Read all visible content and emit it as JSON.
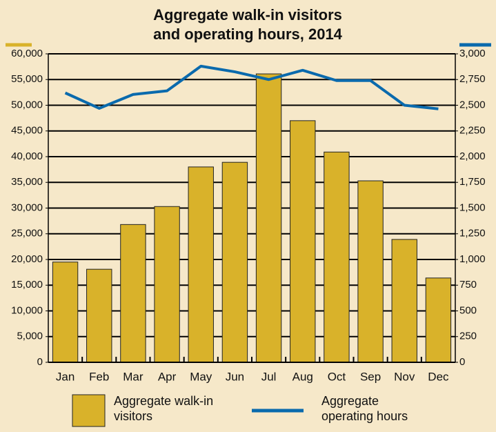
{
  "chart_data": {
    "type": "bar_line",
    "title": "Aggregate walk-in visitors and operating hours, 2014",
    "categories": [
      "Jan",
      "Feb",
      "Mar",
      "Apr",
      "May",
      "Jun",
      "Jul",
      "Aug",
      "Oct",
      "Sep",
      "Nov",
      "Dec"
    ],
    "series": [
      {
        "name": "Aggregate walk-in visitors",
        "type": "bar",
        "color": "#d9b22a",
        "axis": "y",
        "values": [
          19500,
          18100,
          26800,
          30300,
          38000,
          38900,
          56100,
          47000,
          40900,
          35300,
          23900,
          16400
        ]
      },
      {
        "name": "Aggregate operating hours",
        "type": "line",
        "color": "#0a6aad",
        "axis": "y2",
        "values": [
          2620,
          2470,
          2605,
          2640,
          2880,
          2825,
          2750,
          2840,
          2740,
          2740,
          2500,
          2465
        ]
      }
    ],
    "ylim": [
      0,
      60000
    ],
    "yticks": [
      0,
      {
        "value": 5000,
        "label": "5,000"
      },
      {
        "value": 10000,
        "label": "10,000"
      },
      {
        "value": 15000,
        "label": "15,000"
      },
      {
        "value": 20000,
        "label": "20,000"
      },
      {
        "value": 25000,
        "label": "25,000"
      },
      {
        "value": 30000,
        "label": "30,000"
      },
      {
        "value": 35000,
        "label": "35,000"
      },
      {
        "value": 40000,
        "label": "40,000"
      },
      {
        "value": 45000,
        "label": "45,000"
      },
      {
        "value": 50000,
        "label": "50,000"
      },
      {
        "value": 55000,
        "label": "55,000"
      },
      {
        "value": 60000,
        "label": "60,000"
      }
    ],
    "y2lim": [
      0,
      3000
    ],
    "y2ticks": [
      0,
      250,
      500,
      750,
      {
        "value": 1000,
        "label": "1,000"
      },
      {
        "value": 1250,
        "label": "1,250"
      },
      {
        "value": 1500,
        "label": "1,500"
      },
      {
        "value": 1750,
        "label": "1,750"
      },
      {
        "value": 2000,
        "label": "2,000"
      },
      {
        "value": 2250,
        "label": "2,250"
      },
      {
        "value": 2500,
        "label": "2,500"
      },
      {
        "value": 2750,
        "label": "2,750"
      },
      {
        "value": 3000,
        "label": "3,000"
      }
    ],
    "grid": true,
    "legend": "bottom"
  }
}
